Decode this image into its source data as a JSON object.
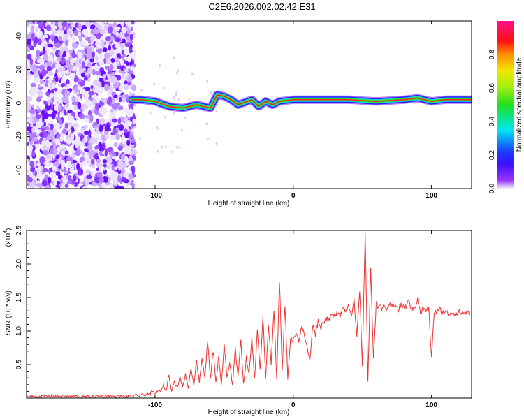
{
  "chart_data": [
    {
      "type": "heatmap",
      "title": "C2E6.2026.002.02.42.E31",
      "xlabel": "Height of straight line (km)",
      "ylabel": "Frequency (Hz)",
      "xlim": [
        -193,
        129
      ],
      "ylim": [
        -51,
        49
      ],
      "xticks": [
        "-100",
        "0",
        "100"
      ],
      "xtick_values": [
        -100,
        0,
        100
      ],
      "yticks": [
        "40",
        "20",
        "0",
        "-20",
        "-40"
      ],
      "ytick_values": [
        40,
        20,
        0,
        -20,
        -40
      ],
      "noise_region_xlim": [
        -193,
        -115
      ],
      "ridge_x": [
        -117,
        -110,
        -100,
        -90,
        -80,
        -70,
        -60,
        -55,
        -50,
        -45,
        -40,
        -30,
        -25,
        -20,
        -15,
        -10,
        0,
        20,
        40,
        60,
        80,
        90,
        100,
        110,
        129
      ],
      "ridge_freq": [
        2,
        2,
        1,
        -2,
        -3,
        -1,
        -3,
        5,
        4,
        2,
        -1,
        2,
        -2,
        1,
        -1,
        1,
        2,
        2,
        2,
        1,
        2,
        3,
        1,
        2,
        2
      ],
      "colorbar": {
        "label": "Normalized spectral amplitude",
        "range": [
          0,
          1
        ],
        "ticks": [
          "0.0",
          "0.2",
          "0.4",
          "0.6",
          "0.8"
        ],
        "tick_values": [
          0,
          0.2,
          0.4,
          0.6,
          0.8
        ]
      }
    },
    {
      "type": "line",
      "xlabel": "Height of straight line (km)",
      "ylabel": "SNR (10 * v/v)",
      "y_multiplier": "(x10",
      "y_multiplier_exp": "4",
      "xlim": [
        -193,
        129
      ],
      "ylim": [
        0,
        2.5
      ],
      "xticks": [
        "-100",
        "0",
        "100"
      ],
      "xtick_values": [
        -100,
        0,
        100
      ],
      "yticks": [
        "0.5",
        "1.0",
        "1.5",
        "2.0",
        "2.5"
      ],
      "ytick_values": [
        0.5,
        1.0,
        1.5,
        2.0,
        2.5
      ],
      "color": "#ee3333",
      "x_start": -120,
      "x_step": 2,
      "prefix_x": [
        -193,
        -170,
        -150,
        -135
      ],
      "prefix_y": [
        0.02,
        0.03,
        0.02,
        0.03
      ],
      "y": [
        0.02,
        0.03,
        0.02,
        0.04,
        0.03,
        0.05,
        0.04,
        0.07,
        0.05,
        0.1,
        0.06,
        0.12,
        0.08,
        0.2,
        0.1,
        0.35,
        0.12,
        0.25,
        0.15,
        0.3,
        0.18,
        0.35,
        0.15,
        0.45,
        0.2,
        0.55,
        0.25,
        0.6,
        0.3,
        0.85,
        0.3,
        0.7,
        0.25,
        0.6,
        0.2,
        0.8,
        0.3,
        0.5,
        0.2,
        0.75,
        0.3,
        0.9,
        0.2,
        0.6,
        0.35,
        0.9,
        0.3,
        1.0,
        0.4,
        1.25,
        0.3,
        1.1,
        0.5,
        1.3,
        0.3,
        1.78,
        0.4,
        1.4,
        0.3,
        0.9,
        0.85,
        1.0,
        0.85,
        1.05,
        0.95,
        0.75,
        0.55,
        1.1,
        0.95,
        1.15,
        1.05,
        1.15,
        1.2,
        1.15,
        1.25,
        1.2,
        1.3,
        1.25,
        1.35,
        1.3,
        1.4,
        1.25,
        1.45,
        0.9,
        1.6,
        0.5,
        2.5,
        0.25,
        1.9,
        0.6,
        1.4,
        1.38,
        1.32,
        1.4,
        1.3,
        1.38,
        1.35,
        1.42,
        1.3,
        1.4,
        1.35,
        1.38,
        1.45,
        1.3,
        1.35,
        1.5,
        1.25,
        1.35,
        1.3,
        1.32,
        0.6,
        1.3,
        1.28,
        1.32,
        1.27,
        1.3,
        1.25,
        1.28,
        1.27,
        1.26,
        1.28,
        1.27,
        1.27,
        1.28,
        1.27
      ]
    }
  ]
}
